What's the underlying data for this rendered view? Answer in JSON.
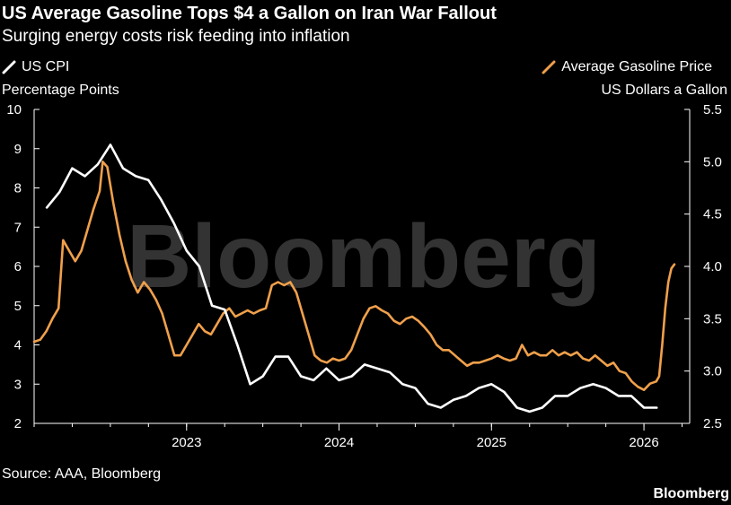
{
  "header": {
    "title": "US Average Gasoline Tops $4 a Gallon on Iran War Fallout",
    "subtitle": "Surging energy costs risk feeding into inflation"
  },
  "footer": {
    "source": "Source: AAA, Bloomberg",
    "brand": "Bloomberg"
  },
  "colors": {
    "background": "#000000",
    "cpi": "#ffffff",
    "gasoline": "#f0a04b",
    "axis": "#ffffff"
  },
  "chart_data": {
    "type": "line",
    "title": "US Average Gasoline Tops $4 a Gallon on Iran War Fallout",
    "subtitle": "Surging energy costs risk feeding into inflation",
    "watermark": "Bloomberg",
    "legend_placement": "top",
    "grid": false,
    "x_axis": {
      "range": [
        2022.0,
        2026.3
      ],
      "ticks": [
        2023,
        2024,
        2025,
        2026
      ],
      "tick_labels": [
        "2023",
        "2024",
        "2025",
        "2026"
      ]
    },
    "y_left": {
      "label": "Percentage Points",
      "range": [
        2,
        10
      ],
      "ticks": [
        2,
        3,
        4,
        5,
        6,
        7,
        8,
        9,
        10
      ],
      "tick_labels": [
        "2",
        "3",
        "4",
        "5",
        "6",
        "7",
        "8",
        "9",
        "10"
      ]
    },
    "y_right": {
      "label": "US Dollars a Gallon",
      "range": [
        2.5,
        5.5
      ],
      "ticks": [
        2.5,
        3.0,
        3.5,
        4.0,
        4.5,
        5.0,
        5.5
      ],
      "tick_labels": [
        "2.5",
        "3.0",
        "3.5",
        "4.0",
        "4.5",
        "5.0",
        "5.5"
      ]
    },
    "series": [
      {
        "name": "US CPI",
        "axis": "left",
        "color": "#ffffff",
        "points": [
          [
            2022.083,
            7.5
          ],
          [
            2022.167,
            7.9
          ],
          [
            2022.25,
            8.5
          ],
          [
            2022.333,
            8.3
          ],
          [
            2022.417,
            8.6
          ],
          [
            2022.5,
            9.1
          ],
          [
            2022.583,
            8.5
          ],
          [
            2022.667,
            8.3
          ],
          [
            2022.75,
            8.2
          ],
          [
            2022.833,
            7.7
          ],
          [
            2022.917,
            7.1
          ],
          [
            2023.0,
            6.4
          ],
          [
            2023.083,
            6.0
          ],
          [
            2023.167,
            5.0
          ],
          [
            2023.25,
            4.9
          ],
          [
            2023.333,
            4.0
          ],
          [
            2023.417,
            3.0
          ],
          [
            2023.5,
            3.2
          ],
          [
            2023.583,
            3.7
          ],
          [
            2023.667,
            3.7
          ],
          [
            2023.75,
            3.2
          ],
          [
            2023.833,
            3.1
          ],
          [
            2023.917,
            3.4
          ],
          [
            2024.0,
            3.1
          ],
          [
            2024.083,
            3.2
          ],
          [
            2024.167,
            3.5
          ],
          [
            2024.25,
            3.4
          ],
          [
            2024.333,
            3.3
          ],
          [
            2024.417,
            3.0
          ],
          [
            2024.5,
            2.9
          ],
          [
            2024.583,
            2.5
          ],
          [
            2024.667,
            2.4
          ],
          [
            2024.75,
            2.6
          ],
          [
            2024.833,
            2.7
          ],
          [
            2024.917,
            2.9
          ],
          [
            2025.0,
            3.0
          ],
          [
            2025.083,
            2.8
          ],
          [
            2025.167,
            2.4
          ],
          [
            2025.25,
            2.3
          ],
          [
            2025.333,
            2.4
          ],
          [
            2025.417,
            2.7
          ],
          [
            2025.5,
            2.7
          ],
          [
            2025.583,
            2.9
          ],
          [
            2025.667,
            3.0
          ],
          [
            2025.75,
            2.9
          ],
          [
            2025.833,
            2.7
          ],
          [
            2025.917,
            2.7
          ],
          [
            2026.0,
            2.4
          ],
          [
            2026.083,
            2.4
          ]
        ]
      },
      {
        "name": "Average Gasoline Price",
        "axis": "right",
        "color": "#f0a04b",
        "points": [
          [
            2022.0,
            3.28
          ],
          [
            2022.04,
            3.3
          ],
          [
            2022.08,
            3.38
          ],
          [
            2022.12,
            3.5
          ],
          [
            2022.16,
            3.6
          ],
          [
            2022.19,
            4.25
          ],
          [
            2022.23,
            4.15
          ],
          [
            2022.27,
            4.05
          ],
          [
            2022.31,
            4.15
          ],
          [
            2022.35,
            4.35
          ],
          [
            2022.39,
            4.55
          ],
          [
            2022.43,
            4.72
          ],
          [
            2022.45,
            5.0
          ],
          [
            2022.48,
            4.95
          ],
          [
            2022.52,
            4.6
          ],
          [
            2022.56,
            4.3
          ],
          [
            2022.6,
            4.05
          ],
          [
            2022.64,
            3.87
          ],
          [
            2022.68,
            3.75
          ],
          [
            2022.72,
            3.85
          ],
          [
            2022.76,
            3.78
          ],
          [
            2022.8,
            3.68
          ],
          [
            2022.84,
            3.55
          ],
          [
            2022.88,
            3.35
          ],
          [
            2022.92,
            3.15
          ],
          [
            2022.96,
            3.15
          ],
          [
            2023.0,
            3.25
          ],
          [
            2023.04,
            3.35
          ],
          [
            2023.08,
            3.45
          ],
          [
            2023.12,
            3.38
          ],
          [
            2023.16,
            3.35
          ],
          [
            2023.2,
            3.45
          ],
          [
            2023.24,
            3.55
          ],
          [
            2023.28,
            3.6
          ],
          [
            2023.32,
            3.52
          ],
          [
            2023.36,
            3.55
          ],
          [
            2023.4,
            3.58
          ],
          [
            2023.44,
            3.55
          ],
          [
            2023.48,
            3.58
          ],
          [
            2023.52,
            3.6
          ],
          [
            2023.56,
            3.82
          ],
          [
            2023.6,
            3.85
          ],
          [
            2023.64,
            3.82
          ],
          [
            2023.68,
            3.85
          ],
          [
            2023.72,
            3.75
          ],
          [
            2023.76,
            3.55
          ],
          [
            2023.8,
            3.35
          ],
          [
            2023.84,
            3.15
          ],
          [
            2023.88,
            3.1
          ],
          [
            2023.92,
            3.08
          ],
          [
            2023.96,
            3.12
          ],
          [
            2024.0,
            3.1
          ],
          [
            2024.04,
            3.12
          ],
          [
            2024.08,
            3.2
          ],
          [
            2024.12,
            3.35
          ],
          [
            2024.16,
            3.5
          ],
          [
            2024.2,
            3.6
          ],
          [
            2024.24,
            3.62
          ],
          [
            2024.28,
            3.58
          ],
          [
            2024.32,
            3.55
          ],
          [
            2024.36,
            3.48
          ],
          [
            2024.4,
            3.45
          ],
          [
            2024.44,
            3.5
          ],
          [
            2024.48,
            3.52
          ],
          [
            2024.52,
            3.48
          ],
          [
            2024.56,
            3.42
          ],
          [
            2024.6,
            3.35
          ],
          [
            2024.64,
            3.25
          ],
          [
            2024.68,
            3.2
          ],
          [
            2024.72,
            3.2
          ],
          [
            2024.76,
            3.15
          ],
          [
            2024.8,
            3.1
          ],
          [
            2024.84,
            3.05
          ],
          [
            2024.88,
            3.08
          ],
          [
            2024.92,
            3.08
          ],
          [
            2024.96,
            3.1
          ],
          [
            2025.0,
            3.12
          ],
          [
            2025.04,
            3.15
          ],
          [
            2025.08,
            3.12
          ],
          [
            2025.12,
            3.1
          ],
          [
            2025.16,
            3.12
          ],
          [
            2025.2,
            3.25
          ],
          [
            2025.24,
            3.15
          ],
          [
            2025.28,
            3.18
          ],
          [
            2025.32,
            3.15
          ],
          [
            2025.36,
            3.15
          ],
          [
            2025.4,
            3.2
          ],
          [
            2025.44,
            3.15
          ],
          [
            2025.48,
            3.18
          ],
          [
            2025.52,
            3.15
          ],
          [
            2025.56,
            3.18
          ],
          [
            2025.6,
            3.12
          ],
          [
            2025.64,
            3.1
          ],
          [
            2025.68,
            3.15
          ],
          [
            2025.72,
            3.1
          ],
          [
            2025.76,
            3.05
          ],
          [
            2025.8,
            3.08
          ],
          [
            2025.84,
            3.0
          ],
          [
            2025.88,
            2.98
          ],
          [
            2025.92,
            2.9
          ],
          [
            2025.96,
            2.85
          ],
          [
            2026.0,
            2.82
          ],
          [
            2026.04,
            2.88
          ],
          [
            2026.08,
            2.9
          ],
          [
            2026.1,
            2.95
          ],
          [
            2026.12,
            3.25
          ],
          [
            2026.14,
            3.6
          ],
          [
            2026.16,
            3.85
          ],
          [
            2026.18,
            3.98
          ],
          [
            2026.2,
            4.02
          ]
        ]
      }
    ]
  }
}
